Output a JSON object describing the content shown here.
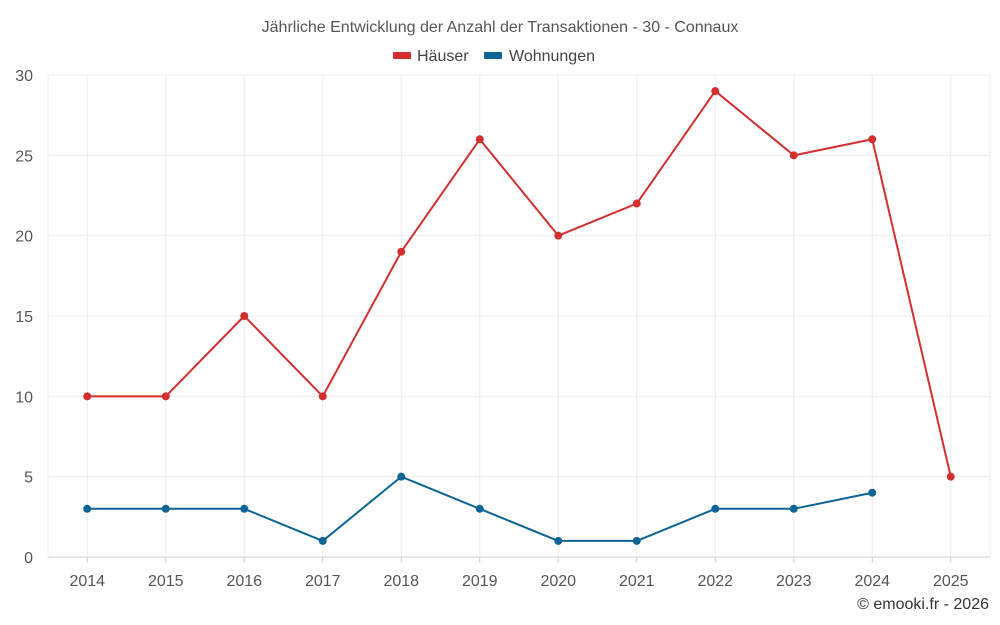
{
  "chart_data": {
    "type": "line",
    "title": "Jährliche Entwicklung der Anzahl der Transaktionen - 30 - Connaux",
    "categories": [
      "2014",
      "2015",
      "2016",
      "2017",
      "2018",
      "2019",
      "2020",
      "2021",
      "2022",
      "2023",
      "2024",
      "2025"
    ],
    "series": [
      {
        "name": "Häuser",
        "color": "#d32f2f",
        "values": [
          10,
          10,
          15,
          10,
          19,
          26,
          20,
          22,
          29,
          25,
          26,
          5
        ]
      },
      {
        "name": "Wohnungen",
        "color": "#0d6596",
        "values": [
          3,
          3,
          3,
          1,
          5,
          3,
          1,
          1,
          3,
          3,
          4,
          null
        ]
      }
    ],
    "ylim": [
      0,
      30
    ],
    "yticks": [
      0,
      5,
      10,
      15,
      20,
      25,
      30
    ],
    "xlabel": "",
    "ylabel": "",
    "grid": true,
    "legend_position": "top-center"
  },
  "credit": "© emooki.fr - 2026"
}
